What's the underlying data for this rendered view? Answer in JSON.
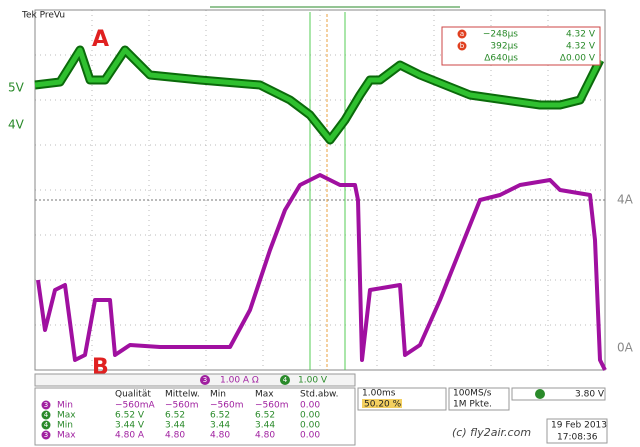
{
  "header": {
    "title": "Tek PreVu"
  },
  "markers": {
    "a": "A",
    "b": "B"
  },
  "levels": {
    "v5": "5V",
    "v4": "4V",
    "a4": "4A",
    "a0": "0A"
  },
  "cursors": {
    "rows": [
      [
        "−248µs",
        "4.32 V"
      ],
      [
        "392µs",
        "4.32 V"
      ],
      [
        "Δ640µs",
        "Δ0.00 V"
      ]
    ],
    "labels": [
      "a",
      "b"
    ]
  },
  "channels": {
    "ch3": "1.00 A Ω",
    "ch4": "1.00 V",
    "ch3_num": "3",
    "ch4_num": "4",
    "time": "1.00ms",
    "position": "50.20 %",
    "rate": "100MS/s",
    "points": "1M Pkte.",
    "trigger": "3.80 V"
  },
  "table": {
    "header": [
      "Qualität",
      "Mittelw.",
      "Min",
      "Max",
      "Std.abw."
    ],
    "rows": [
      {
        "channel": "3",
        "label": "Min",
        "cells": [
          "−560mA",
          "−560m",
          "−560m",
          "−560m",
          "0.00"
        ]
      },
      {
        "channel": "4",
        "label": "Max",
        "cells": [
          "6.52 V",
          "6.52",
          "6.52",
          "6.52",
          "0.00"
        ]
      },
      {
        "channel": "4",
        "label": "Min",
        "cells": [
          "3.44 V",
          "3.44",
          "3.44",
          "3.44",
          "0.00"
        ]
      },
      {
        "channel": "3",
        "label": "Max",
        "cells": [
          "4.80 A",
          "4.80",
          "4.80",
          "4.80",
          "0.00"
        ]
      }
    ]
  },
  "footer": {
    "watermark": "(c) fly2air.com",
    "date": "19 Feb 2013",
    "time": "17:08:36"
  }
}
